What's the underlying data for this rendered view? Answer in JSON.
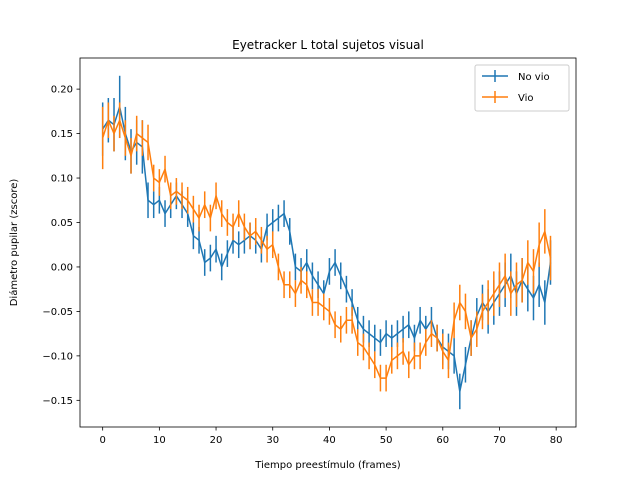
{
  "chart_data": {
    "type": "line",
    "title": "Eyetracker L total sujetos visual",
    "xlabel": "Tiempo preestímulo (frames)",
    "ylabel": "Diámetro pupilar (zscore)",
    "xlim": [
      -4,
      83.5
    ],
    "ylim": [
      -0.18,
      0.235
    ],
    "xticks": [
      0,
      10,
      20,
      30,
      40,
      50,
      60,
      70,
      80
    ],
    "yticks": [
      -0.15,
      -0.1,
      -0.05,
      0.0,
      0.05,
      0.1,
      0.15,
      0.2
    ],
    "ytick_labels": [
      "−0.15",
      "−0.10",
      "−0.05",
      "0.00",
      "0.05",
      "0.10",
      "0.15",
      "0.20"
    ],
    "xtick_labels": [
      "0",
      "10",
      "20",
      "30",
      "40",
      "50",
      "60",
      "70",
      "80"
    ],
    "grid": false,
    "legend_position": "top-right",
    "series": [
      {
        "name": "No vio",
        "color": "#1f77b4",
        "x": [
          0,
          1,
          2,
          3,
          4,
          5,
          6,
          7,
          8,
          9,
          10,
          11,
          12,
          13,
          14,
          15,
          16,
          17,
          18,
          19,
          20,
          21,
          22,
          23,
          24,
          25,
          26,
          27,
          28,
          29,
          30,
          31,
          32,
          33,
          34,
          35,
          36,
          37,
          38,
          39,
          40,
          41,
          42,
          43,
          44,
          45,
          46,
          47,
          48,
          49,
          50,
          51,
          52,
          53,
          54,
          55,
          56,
          57,
          58,
          59,
          60,
          61,
          62,
          63,
          64,
          65,
          66,
          67,
          68,
          69,
          70,
          71,
          72,
          73,
          74,
          75,
          76,
          77,
          78,
          79
        ],
        "y": [
          0.155,
          0.165,
          0.16,
          0.18,
          0.15,
          0.13,
          0.14,
          0.135,
          0.075,
          0.07,
          0.075,
          0.06,
          0.07,
          0.08,
          0.07,
          0.06,
          0.035,
          0.03,
          0.005,
          0.01,
          0.02,
          0.0,
          0.015,
          0.03,
          0.025,
          0.03,
          0.035,
          0.03,
          0.02,
          0.045,
          0.05,
          0.055,
          0.06,
          0.04,
          0.0,
          -0.005,
          0.005,
          -0.01,
          -0.02,
          -0.03,
          -0.005,
          0.005,
          -0.01,
          -0.025,
          -0.04,
          -0.06,
          -0.07,
          -0.075,
          -0.08,
          -0.085,
          -0.075,
          -0.08,
          -0.075,
          -0.07,
          -0.065,
          -0.08,
          -0.06,
          -0.07,
          -0.06,
          -0.08,
          -0.09,
          -0.095,
          -0.1,
          -0.14,
          -0.11,
          -0.08,
          -0.055,
          -0.04,
          -0.05,
          -0.04,
          -0.03,
          -0.02,
          -0.01,
          -0.03,
          -0.015,
          -0.025,
          -0.035,
          -0.02,
          -0.04,
          0.005
        ],
        "err": [
          0.03,
          0.025,
          0.03,
          0.035,
          0.03,
          0.025,
          0.025,
          0.03,
          0.02,
          0.015,
          0.015,
          0.015,
          0.015,
          0.015,
          0.015,
          0.015,
          0.015,
          0.015,
          0.015,
          0.015,
          0.015,
          0.015,
          0.015,
          0.015,
          0.015,
          0.015,
          0.015,
          0.015,
          0.015,
          0.015,
          0.015,
          0.015,
          0.015,
          0.015,
          0.015,
          0.015,
          0.015,
          0.015,
          0.015,
          0.015,
          0.015,
          0.015,
          0.015,
          0.015,
          0.015,
          0.015,
          0.015,
          0.015,
          0.015,
          0.015,
          0.015,
          0.015,
          0.015,
          0.015,
          0.015,
          0.015,
          0.015,
          0.015,
          0.015,
          0.015,
          0.02,
          0.02,
          0.02,
          0.02,
          0.02,
          0.02,
          0.02,
          0.02,
          0.025,
          0.025,
          0.025,
          0.025,
          0.025,
          0.025,
          0.025,
          0.025,
          0.025,
          0.025,
          0.025,
          0.025
        ]
      },
      {
        "name": "Vio",
        "color": "#ff7f0e",
        "x": [
          0,
          1,
          2,
          3,
          4,
          5,
          6,
          7,
          8,
          9,
          10,
          11,
          12,
          13,
          14,
          15,
          16,
          17,
          18,
          19,
          20,
          21,
          22,
          23,
          24,
          25,
          26,
          27,
          28,
          29,
          30,
          31,
          32,
          33,
          34,
          35,
          36,
          37,
          38,
          39,
          40,
          41,
          42,
          43,
          44,
          45,
          46,
          47,
          48,
          49,
          50,
          51,
          52,
          53,
          54,
          55,
          56,
          57,
          58,
          59,
          60,
          61,
          62,
          63,
          64,
          65,
          66,
          67,
          68,
          69,
          70,
          71,
          72,
          73,
          74,
          75,
          76,
          77,
          78,
          79
        ],
        "y": [
          0.145,
          0.165,
          0.15,
          0.165,
          0.145,
          0.125,
          0.15,
          0.145,
          0.14,
          0.1,
          0.095,
          0.11,
          0.08,
          0.085,
          0.08,
          0.075,
          0.065,
          0.055,
          0.07,
          0.055,
          0.08,
          0.06,
          0.05,
          0.045,
          0.06,
          0.045,
          0.035,
          0.04,
          0.03,
          0.02,
          0.025,
          0.0,
          -0.02,
          -0.02,
          -0.03,
          -0.015,
          -0.02,
          -0.04,
          -0.04,
          -0.045,
          -0.05,
          -0.065,
          -0.07,
          -0.06,
          -0.06,
          -0.085,
          -0.09,
          -0.1,
          -0.11,
          -0.125,
          -0.125,
          -0.105,
          -0.1,
          -0.095,
          -0.11,
          -0.1,
          -0.1,
          -0.085,
          -0.075,
          -0.08,
          -0.095,
          -0.105,
          -0.06,
          -0.04,
          -0.05,
          -0.08,
          -0.07,
          -0.05,
          -0.04,
          -0.03,
          -0.02,
          -0.01,
          -0.03,
          -0.02,
          -0.015,
          0.005,
          -0.005,
          0.025,
          0.04,
          0.01
        ],
        "err": [
          0.035,
          0.02,
          0.02,
          0.02,
          0.02,
          0.02,
          0.02,
          0.02,
          0.02,
          0.015,
          0.015,
          0.015,
          0.015,
          0.015,
          0.015,
          0.015,
          0.015,
          0.015,
          0.015,
          0.015,
          0.015,
          0.015,
          0.015,
          0.015,
          0.015,
          0.015,
          0.015,
          0.015,
          0.015,
          0.015,
          0.015,
          0.015,
          0.015,
          0.015,
          0.015,
          0.015,
          0.015,
          0.015,
          0.015,
          0.015,
          0.015,
          0.015,
          0.015,
          0.015,
          0.015,
          0.015,
          0.015,
          0.015,
          0.015,
          0.015,
          0.015,
          0.015,
          0.015,
          0.015,
          0.015,
          0.015,
          0.015,
          0.015,
          0.015,
          0.015,
          0.02,
          0.02,
          0.02,
          0.02,
          0.02,
          0.02,
          0.02,
          0.02,
          0.025,
          0.025,
          0.025,
          0.025,
          0.025,
          0.025,
          0.025,
          0.025,
          0.025,
          0.025,
          0.025,
          0.025
        ]
      }
    ]
  }
}
